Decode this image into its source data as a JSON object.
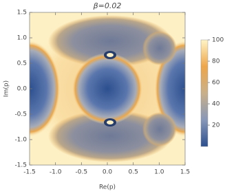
{
  "chart_data": {
    "type": "heatmap",
    "title": "β=0.02",
    "x_label": "Re(p)",
    "y_label": "Im(p)",
    "xlim": [
      -1.5,
      1.5
    ],
    "xticks": [
      -1.5,
      {
        "value": -1,
        "label": "-1.0"
      },
      -0.5,
      {
        "value": 0,
        "label": "0.0"
      },
      0.5,
      {
        "value": 1,
        "label": "1.0"
      },
      1.5
    ],
    "ylim": [
      -1.5,
      1.5
    ],
    "yticks": [
      -1.5,
      {
        "value": -1,
        "label": "-1.0"
      },
      -0.5,
      {
        "value": 0,
        "label": "0.0"
      },
      0.5,
      {
        "value": 1,
        "label": "1.0"
      },
      1.5
    ],
    "zlim": [
      0,
      100
    ],
    "zticks": [
      20,
      40,
      60,
      80,
      100
    ],
    "colormap": [
      "#2c4f8e",
      "#8797b8",
      "#c9b08a",
      "#eea64a",
      "#fff4c6"
    ]
  }
}
